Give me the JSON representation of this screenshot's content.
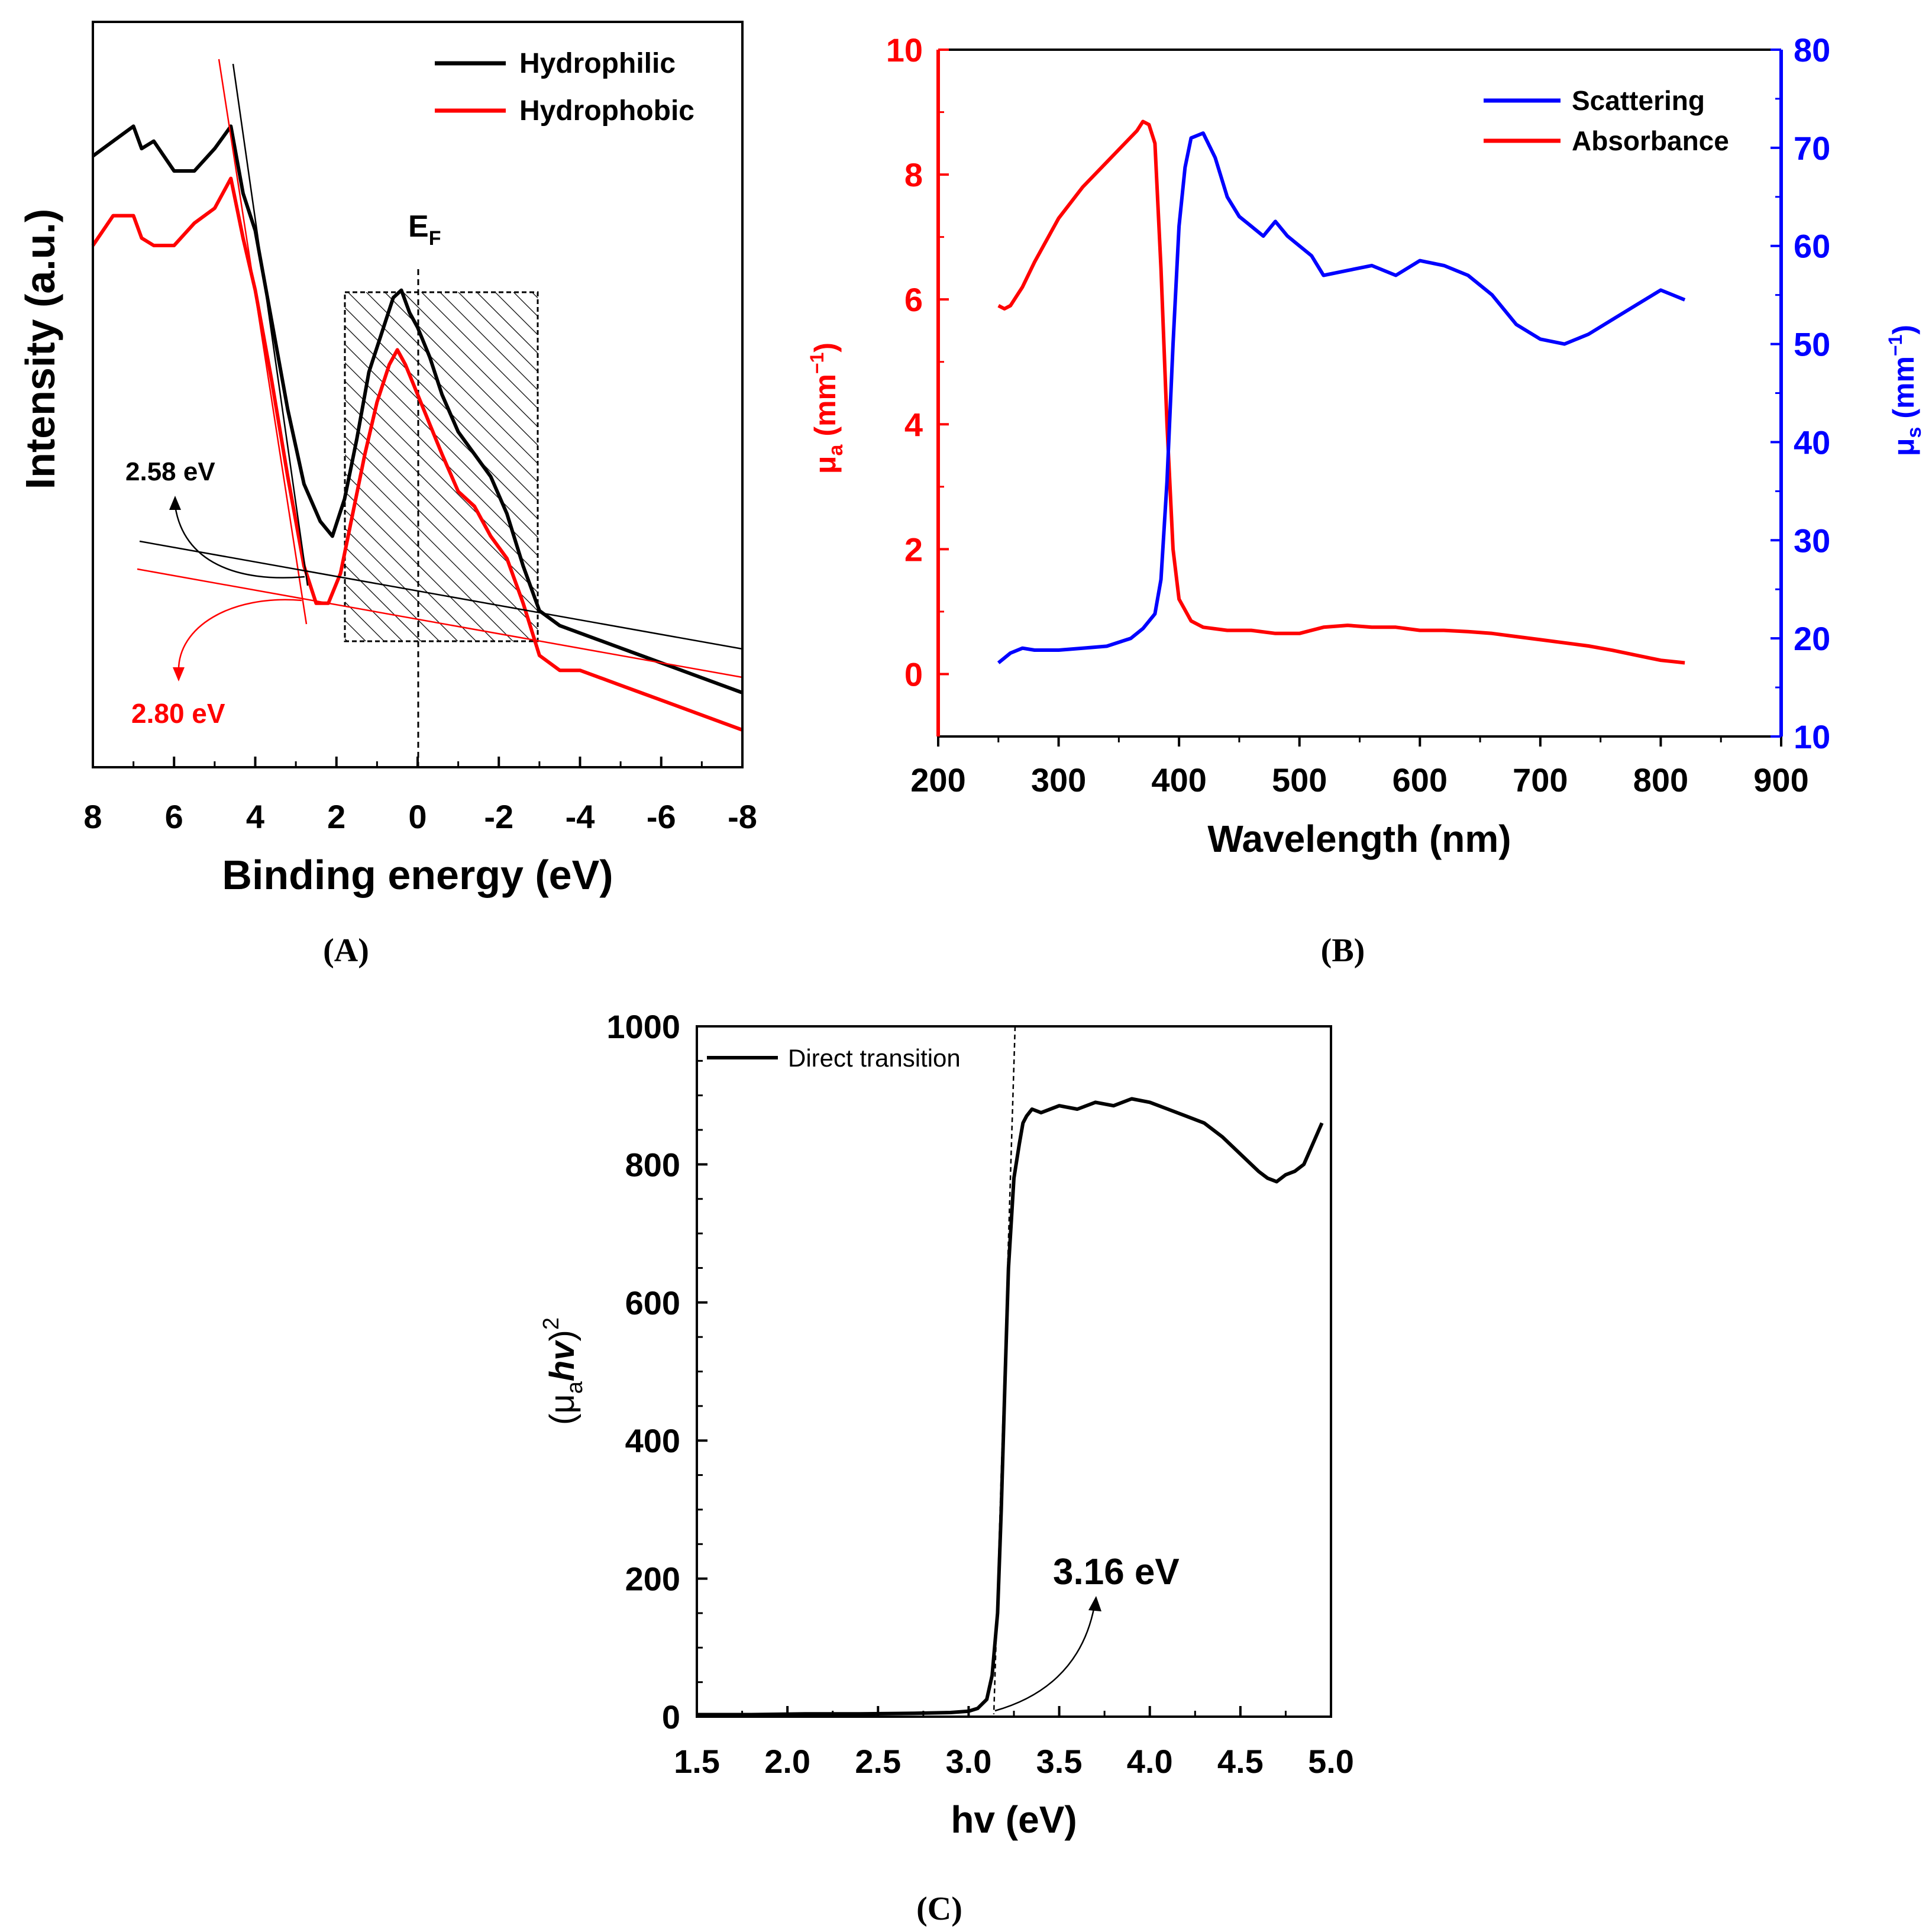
{
  "colors": {
    "black": "#000000",
    "red": "#ff0000",
    "blue": "#0000ff",
    "axis": "#000000"
  },
  "chart_data": [
    {
      "panel": "A",
      "type": "line",
      "panel_label": "(A)",
      "xlabel": "Binding energy (eV)",
      "ylabel": "Intensity (a.u.)",
      "xlim": [
        8,
        -8
      ],
      "ylim": [
        0,
        100
      ],
      "x_ticks": [
        "8",
        "6",
        "4",
        "2",
        "0",
        "-2",
        "-4",
        "-6",
        "-8"
      ],
      "x_tick_values": [
        8,
        6,
        4,
        2,
        0,
        -2,
        -4,
        -6,
        -8
      ],
      "ef_label": "E",
      "ef_sub": "F",
      "legend": [
        {
          "name": "Hydrophilic",
          "color": "#000000"
        },
        {
          "name": "Hydrophobic",
          "color": "#ff0000"
        }
      ],
      "annotations": {
        "black_edge": "2.58 eV",
        "red_edge": "2.80 eV"
      },
      "series": [
        {
          "name": "Hydrophilic",
          "color": "#000000",
          "x": [
            8,
            7.5,
            7,
            6.8,
            6.5,
            6,
            5.5,
            5,
            4.6,
            4.3,
            4,
            3.6,
            3.2,
            2.8,
            2.4,
            2.1,
            1.8,
            1.5,
            1.2,
            0.9,
            0.6,
            0.4,
            0.2,
            0,
            -0.3,
            -0.6,
            -1,
            -1.4,
            -1.8,
            -2.2,
            -2.6,
            -3,
            -3.5,
            -4,
            -4.5,
            -5,
            -5.5,
            -6,
            -6.5,
            -7,
            -7.5,
            -8
          ],
          "values": [
            82,
            84,
            86,
            83,
            84,
            80,
            80,
            83,
            86,
            77,
            72,
            60,
            48,
            38,
            33,
            31,
            36,
            44,
            53,
            58,
            63,
            64,
            61,
            59,
            55,
            50,
            45,
            42,
            39,
            34,
            27,
            21,
            19,
            18,
            17,
            16,
            15,
            14,
            13,
            12,
            11,
            10
          ]
        },
        {
          "name": "Hydrophobic",
          "color": "#ff0000",
          "x": [
            8,
            7.5,
            7,
            6.8,
            6.5,
            6,
            5.5,
            5,
            4.6,
            4.3,
            4,
            3.6,
            3.2,
            2.8,
            2.5,
            2.2,
            1.9,
            1.6,
            1.3,
            1,
            0.7,
            0.5,
            0.3,
            0,
            -0.3,
            -0.6,
            -1,
            -1.4,
            -1.8,
            -2.2,
            -2.6,
            -3,
            -3.5,
            -4,
            -4.5,
            -5,
            -5.5,
            -6,
            -6.5,
            -7,
            -7.5,
            -8
          ],
          "values": [
            70,
            74,
            74,
            71,
            70,
            70,
            73,
            75,
            79,
            71,
            64,
            52,
            39,
            27,
            22,
            22,
            26,
            34,
            42,
            49,
            54,
            56,
            54,
            50,
            46,
            42,
            37,
            35,
            31,
            28,
            22,
            15,
            13,
            13,
            12,
            11,
            10,
            9,
            8,
            7,
            6,
            5
          ]
        }
      ]
    },
    {
      "panel": "B",
      "type": "line",
      "panel_label": "(B)",
      "xlabel": "Wavelength (nm)",
      "ylabel_left": "μ",
      "ylabel_left_sub": "a",
      "ylabel_left_unit": " (mm",
      "ylabel_left_sup": "−1",
      "ylabel_left_close": ")",
      "ylabel_right": "μ",
      "ylabel_right_sub": "s",
      "ylabel_right_unit": " (mm",
      "ylabel_right_sup": "−1",
      "ylabel_right_close": ")",
      "xlim": [
        200,
        900
      ],
      "ylim_left": [
        -1,
        10
      ],
      "ylim_right": [
        10,
        80
      ],
      "x_ticks": [
        "200",
        "300",
        "400",
        "500",
        "600",
        "700",
        "800",
        "900"
      ],
      "x_tick_values": [
        200,
        300,
        400,
        500,
        600,
        700,
        800,
        900
      ],
      "y_ticks_left": [
        "0",
        "2",
        "4",
        "6",
        "8",
        "10"
      ],
      "y_tick_values_left": [
        0,
        2,
        4,
        6,
        8,
        10
      ],
      "y_ticks_right": [
        "10",
        "20",
        "30",
        "40",
        "50",
        "60",
        "70",
        "80"
      ],
      "y_tick_values_right": [
        10,
        20,
        30,
        40,
        50,
        60,
        70,
        80
      ],
      "legend": [
        {
          "name": "Scattering",
          "color": "#0000ff"
        },
        {
          "name": "Absorbance",
          "color": "#ff0000"
        }
      ],
      "series": [
        {
          "name": "Absorbance",
          "axis": "left",
          "color": "#ff0000",
          "x": [
            250,
            255,
            260,
            270,
            280,
            300,
            320,
            340,
            355,
            365,
            370,
            375,
            380,
            385,
            390,
            395,
            400,
            410,
            420,
            440,
            460,
            480,
            500,
            520,
            540,
            560,
            580,
            600,
            620,
            640,
            660,
            680,
            700,
            720,
            740,
            760,
            780,
            800,
            810,
            820
          ],
          "values": [
            5.9,
            5.85,
            5.9,
            6.2,
            6.6,
            7.3,
            7.8,
            8.2,
            8.5,
            8.7,
            8.85,
            8.8,
            8.5,
            6.5,
            4.0,
            2.0,
            1.2,
            0.85,
            0.75,
            0.7,
            0.7,
            0.65,
            0.65,
            0.75,
            0.78,
            0.75,
            0.75,
            0.7,
            0.7,
            0.68,
            0.65,
            0.6,
            0.55,
            0.5,
            0.45,
            0.38,
            0.3,
            0.22,
            0.2,
            0.18
          ]
        },
        {
          "name": "Scattering",
          "axis": "right",
          "color": "#0000ff",
          "x": [
            250,
            260,
            270,
            280,
            300,
            320,
            340,
            360,
            370,
            380,
            385,
            390,
            395,
            400,
            405,
            410,
            420,
            430,
            440,
            450,
            460,
            470,
            480,
            490,
            500,
            510,
            520,
            540,
            560,
            580,
            600,
            620,
            640,
            660,
            680,
            700,
            720,
            740,
            760,
            780,
            800,
            810,
            820
          ],
          "values": [
            17.5,
            18.5,
            19,
            18.8,
            18.8,
            19,
            19.2,
            20,
            21,
            22.5,
            26,
            36,
            50,
            62,
            68,
            71,
            71.5,
            69,
            65,
            63,
            62,
            61,
            62.5,
            61,
            60,
            59,
            57,
            57.5,
            58,
            57,
            58.5,
            58,
            57,
            55,
            52,
            50.5,
            50,
            51,
            52.5,
            54,
            55.5,
            55,
            54.5
          ]
        }
      ]
    },
    {
      "panel": "C",
      "type": "line",
      "panel_label": "(C)",
      "xlabel": "hv (eV)",
      "ylabel": "(μ",
      "ylabel_sub": "a",
      "ylabel_var": "hv",
      "ylabel_close": ")",
      "ylabel_sup": "2",
      "xlim": [
        1.5,
        5.0
      ],
      "ylim": [
        0,
        1000
      ],
      "x_ticks": [
        "1.5",
        "2.0",
        "2.5",
        "3.0",
        "3.5",
        "4.0",
        "4.5",
        "5.0"
      ],
      "x_tick_values": [
        1.5,
        2.0,
        2.5,
        3.0,
        3.5,
        4.0,
        4.5,
        5.0
      ],
      "y_ticks": [
        "0",
        "200",
        "400",
        "600",
        "800",
        "1000"
      ],
      "y_tick_values": [
        0,
        200,
        400,
        600,
        800,
        1000
      ],
      "legend": [
        {
          "name": "Direct transition",
          "color": "#000000"
        }
      ],
      "annotations": {
        "edge": "3.16 eV"
      },
      "series": [
        {
          "name": "Direct transition",
          "color": "#000000",
          "x": [
            1.5,
            1.8,
            2.1,
            2.4,
            2.7,
            2.9,
            3.0,
            3.05,
            3.1,
            3.13,
            3.16,
            3.18,
            3.2,
            3.22,
            3.25,
            3.28,
            3.3,
            3.32,
            3.35,
            3.4,
            3.5,
            3.6,
            3.7,
            3.8,
            3.9,
            4.0,
            4.1,
            4.2,
            4.3,
            4.4,
            4.5,
            4.6,
            4.65,
            4.7,
            4.75,
            4.8,
            4.85,
            4.9,
            4.95
          ],
          "values": [
            3,
            3,
            4,
            4,
            5,
            6,
            8,
            12,
            25,
            60,
            150,
            300,
            480,
            650,
            780,
            830,
            860,
            870,
            880,
            875,
            885,
            880,
            890,
            885,
            895,
            890,
            880,
            870,
            860,
            840,
            815,
            790,
            780,
            775,
            785,
            790,
            800,
            830,
            860
          ]
        }
      ]
    }
  ]
}
